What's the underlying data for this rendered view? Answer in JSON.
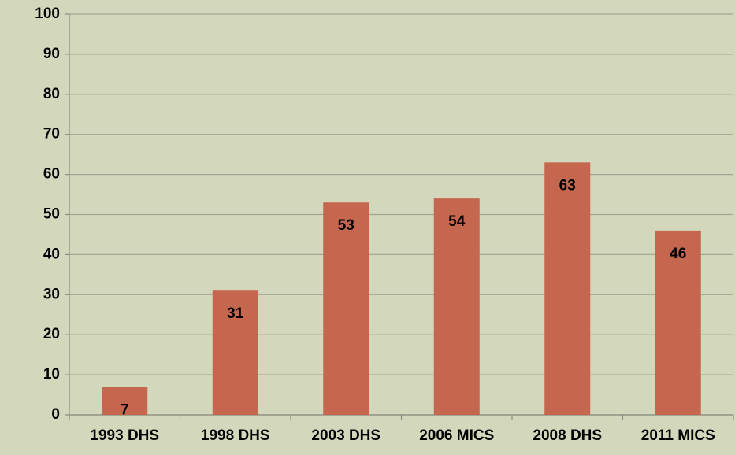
{
  "chart_data": {
    "type": "bar",
    "categories": [
      "1993 DHS",
      "1998 DHS",
      "2003 DHS",
      "2006 MICS",
      "2008 DHS",
      "2011 MICS"
    ],
    "values": [
      7,
      31,
      53,
      54,
      63,
      46
    ],
    "color": "#c5674f",
    "ylim": [
      0,
      100
    ],
    "yticks": [
      0,
      10,
      20,
      30,
      40,
      50,
      60,
      70,
      80,
      90,
      100
    ],
    "grid": true
  }
}
